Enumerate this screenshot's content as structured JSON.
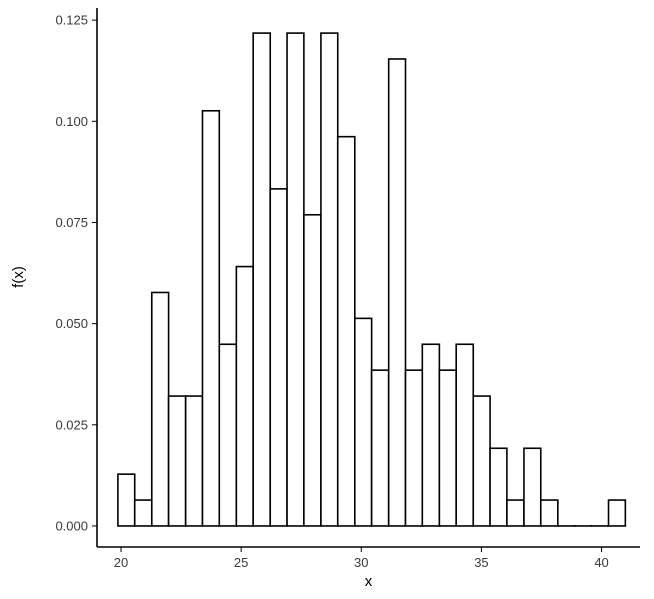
{
  "chart_data": {
    "type": "bar",
    "subtype": "histogram",
    "xlabel": "x",
    "ylabel": "f(x)",
    "xlim": [
      19.0,
      41.6
    ],
    "ylim": [
      -0.0052,
      0.128
    ],
    "x_ticks": [
      20,
      25,
      30,
      35,
      40
    ],
    "y_ticks": [
      0.0,
      0.025,
      0.05,
      0.075,
      0.1,
      0.125
    ],
    "y_tick_labels": [
      "0.000",
      "0.025",
      "0.050",
      "0.075",
      "0.100",
      "0.125"
    ],
    "bin_width": 0.704,
    "bins": [
      {
        "x0": 19.87,
        "x1": 20.57,
        "y": 0.0128
      },
      {
        "x0": 20.57,
        "x1": 21.28,
        "y": 0.0064
      },
      {
        "x0": 21.28,
        "x1": 21.98,
        "y": 0.0577
      },
      {
        "x0": 21.98,
        "x1": 22.69,
        "y": 0.0321
      },
      {
        "x0": 22.69,
        "x1": 23.39,
        "y": 0.0321
      },
      {
        "x0": 23.39,
        "x1": 24.09,
        "y": 0.1026
      },
      {
        "x0": 24.09,
        "x1": 24.8,
        "y": 0.0449
      },
      {
        "x0": 24.8,
        "x1": 25.5,
        "y": 0.0641
      },
      {
        "x0": 25.5,
        "x1": 26.21,
        "y": 0.1218
      },
      {
        "x0": 26.21,
        "x1": 26.91,
        "y": 0.0833
      },
      {
        "x0": 26.91,
        "x1": 27.61,
        "y": 0.1218
      },
      {
        "x0": 27.61,
        "x1": 28.32,
        "y": 0.0769
      },
      {
        "x0": 28.32,
        "x1": 29.02,
        "y": 0.1218
      },
      {
        "x0": 29.02,
        "x1": 29.73,
        "y": 0.0962
      },
      {
        "x0": 29.73,
        "x1": 30.43,
        "y": 0.0513
      },
      {
        "x0": 30.43,
        "x1": 31.14,
        "y": 0.0385
      },
      {
        "x0": 31.14,
        "x1": 31.84,
        "y": 0.1154
      },
      {
        "x0": 31.84,
        "x1": 32.54,
        "y": 0.0385
      },
      {
        "x0": 32.54,
        "x1": 33.25,
        "y": 0.0449
      },
      {
        "x0": 33.25,
        "x1": 33.95,
        "y": 0.0385
      },
      {
        "x0": 33.95,
        "x1": 34.66,
        "y": 0.0449
      },
      {
        "x0": 34.66,
        "x1": 35.36,
        "y": 0.0321
      },
      {
        "x0": 35.36,
        "x1": 36.06,
        "y": 0.0192
      },
      {
        "x0": 36.06,
        "x1": 36.77,
        "y": 0.0064
      },
      {
        "x0": 36.77,
        "x1": 37.47,
        "y": 0.0192
      },
      {
        "x0": 37.47,
        "x1": 38.18,
        "y": 0.0064
      },
      {
        "x0": 38.18,
        "x1": 38.88,
        "y": 0.0
      },
      {
        "x0": 38.88,
        "x1": 39.58,
        "y": 0.0
      },
      {
        "x0": 39.58,
        "x1": 40.29,
        "y": 0.0
      },
      {
        "x0": 40.29,
        "x1": 40.99,
        "y": 0.0064
      }
    ],
    "grid": false,
    "legend": "none"
  }
}
